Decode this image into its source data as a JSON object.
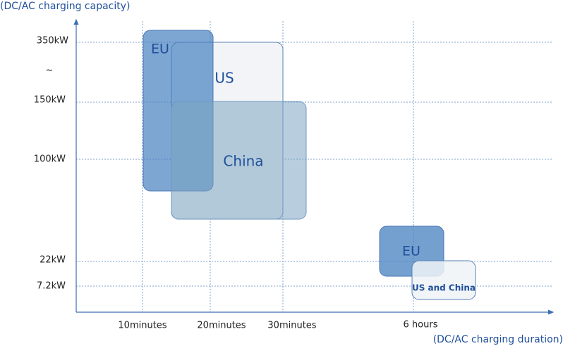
{
  "y_axis_label": "(DC/AC charging capacity)",
  "x_axis_label": "(DC/AC charging duration)",
  "y_ticks": [
    "350kW",
    "~",
    "150kW",
    "100kW",
    "22kW",
    "7.2kW"
  ],
  "x_ticks": [
    "10minutes",
    "20minutes",
    "30minutes",
    "6 hours"
  ],
  "regions": [
    "US",
    "EU",
    "China",
    "EU",
    "US and China"
  ]
}
